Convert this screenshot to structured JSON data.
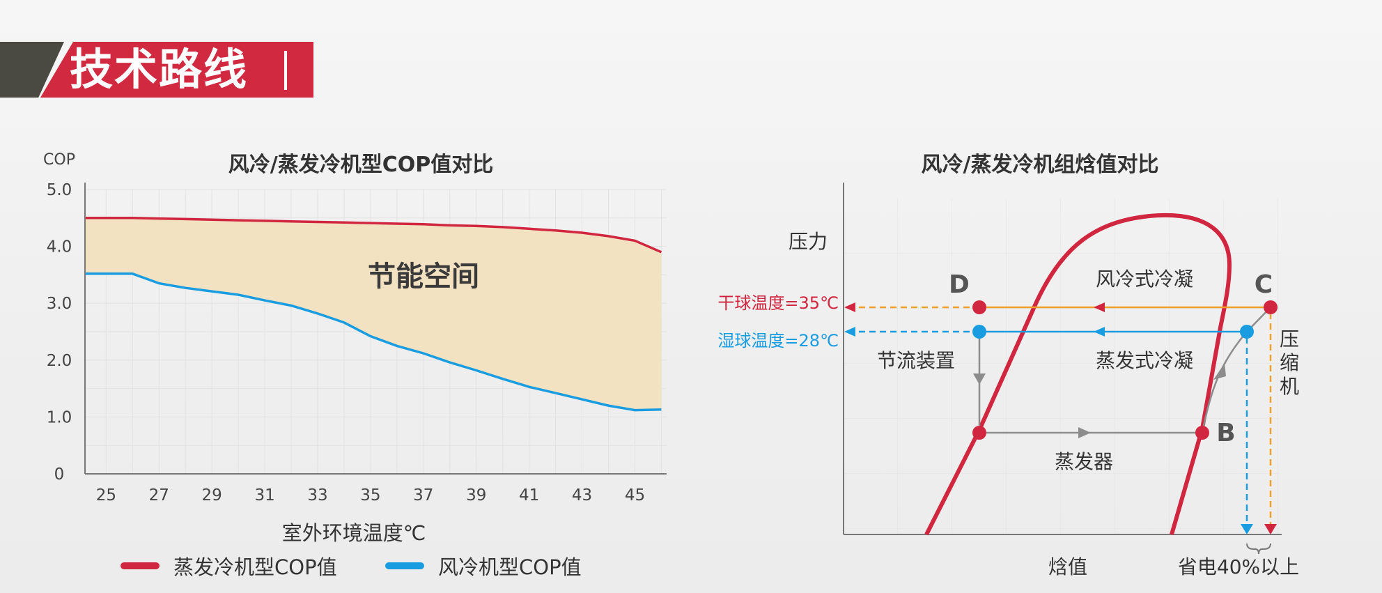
{
  "header": {
    "title": "技术路线"
  },
  "chart_data": [
    {
      "type": "area",
      "title": "风冷/蒸发冷机型COP值对比",
      "xlabel": "室外环境温度℃",
      "ylabel": "COP",
      "x": [
        24,
        25,
        26,
        27,
        28,
        29,
        30,
        31,
        32,
        33,
        34,
        35,
        36,
        37,
        38,
        39,
        40,
        41,
        42,
        43,
        44,
        45,
        46
      ],
      "xticks": [
        "25",
        "27",
        "29",
        "31",
        "33",
        "35",
        "37",
        "39",
        "41",
        "43",
        "45"
      ],
      "yticks": [
        "0",
        "1.0",
        "2.0",
        "3.0",
        "4.0",
        "5.0"
      ],
      "xlim": [
        24.2,
        46.2
      ],
      "ylim": [
        0,
        5
      ],
      "series": [
        {
          "name": "蒸发冷机型COP值",
          "color": "#d1263f",
          "values": [
            4.5,
            4.5,
            4.5,
            4.49,
            4.48,
            4.47,
            4.46,
            4.45,
            4.44,
            4.43,
            4.42,
            4.41,
            4.4,
            4.39,
            4.37,
            4.36,
            4.34,
            4.31,
            4.28,
            4.24,
            4.18,
            4.1,
            3.9
          ]
        },
        {
          "name": "风冷机型COP值",
          "color": "#1a9de0",
          "values": [
            3.52,
            3.52,
            3.52,
            3.35,
            3.27,
            3.21,
            3.15,
            3.05,
            2.96,
            2.82,
            2.66,
            2.42,
            2.25,
            2.12,
            1.96,
            1.82,
            1.67,
            1.53,
            1.42,
            1.31,
            1.2,
            1.12,
            1.13
          ]
        }
      ],
      "annotation": "节能空间",
      "fill_color": "#f3e2c2"
    },
    {
      "type": "diagram",
      "title": "风冷/蒸发冷机组焓值对比",
      "xlabel": "焓值",
      "ylabel": "压力",
      "points": {
        "B": "B",
        "C": "C",
        "D": "D"
      },
      "labels": {
        "dry_bulb": "干球温度=35℃",
        "wet_bulb": "湿球温度=28℃",
        "air_condense": "风冷式冷凝",
        "evap_condense": "蒸发式冷凝",
        "throttle": "节流装置",
        "evaporator": "蒸发器",
        "compressor": "压缩机",
        "saving": "省电40%以上"
      },
      "colors": {
        "dome": "#d1263f",
        "air_line": "#f0a12a",
        "evap_line": "#1a9de0",
        "process": "#8c8c8c"
      }
    }
  ],
  "legend": [
    {
      "label": "蒸发冷机型COP值",
      "color": "#d1263f"
    },
    {
      "label": "风冷机型COP值",
      "color": "#1a9de0"
    }
  ]
}
